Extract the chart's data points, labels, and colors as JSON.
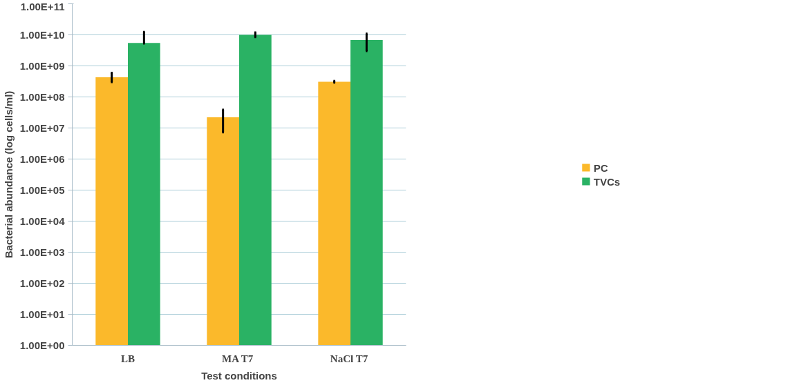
{
  "chart_data": {
    "type": "bar",
    "xlabel": "Test conditions",
    "ylabel": "Bacterial abundance (log cells/ml)",
    "categories": [
      "LB",
      "MA  T7",
      "NaCl  T7"
    ],
    "series": [
      {
        "name": "PC",
        "color": "#fbb92b",
        "values": [
          430000000.0,
          22000000.0,
          310000000.0
        ],
        "errors": [
          [
            300000000.0,
            600000000.0
          ],
          [
            7300000.0,
            39000000.0
          ],
          [
            290000000.0,
            330000000.0
          ]
        ]
      },
      {
        "name": "TVCs",
        "color": "#2ab264",
        "values": [
          5500000000.0,
          10000000000.0,
          6800000000.0
        ],
        "errors": [
          [
            5300000000.0,
            12500000000.0
          ],
          [
            8500000000.0,
            12000000000.0
          ],
          [
            3000000000.0,
            11000000000.0
          ]
        ]
      }
    ],
    "log": true,
    "ylim": [
      1,
      100000000000.0
    ],
    "yticks": [
      {
        "value": 1,
        "label": "1.00E+00"
      },
      {
        "value": 10,
        "label": "1.00E+01"
      },
      {
        "value": 100,
        "label": "1.00E+02"
      },
      {
        "value": 1000,
        "label": "1.00E+03"
      },
      {
        "value": 10000,
        "label": "1.00E+04"
      },
      {
        "value": 100000,
        "label": "1.00E+05"
      },
      {
        "value": 1000000,
        "label": "1.00E+06"
      },
      {
        "value": 10000000,
        "label": "1.00E+07"
      },
      {
        "value": 100000000,
        "label": "1.00E+08"
      },
      {
        "value": 1000000000,
        "label": "1.00E+09"
      },
      {
        "value": 10000000000,
        "label": "1.00E+10"
      },
      {
        "value": 100000000000,
        "label": "1.00E+11"
      }
    ],
    "grid": "y",
    "legend": "right"
  }
}
